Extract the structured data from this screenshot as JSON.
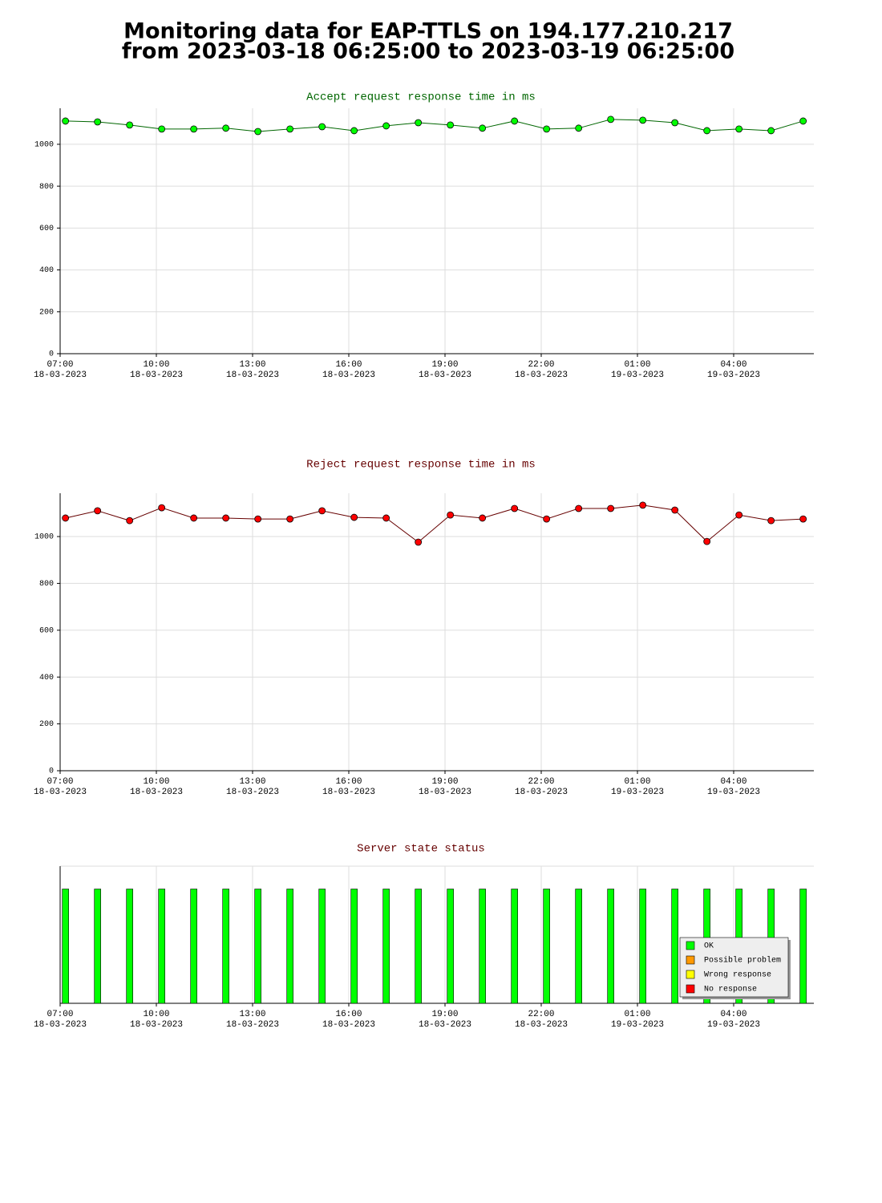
{
  "title": [
    "Monitoring data for EAP-TTLS on 194.177.210.217",
    "from 2023-03-18 06:25:00 to 2023-03-19 06:25:00"
  ],
  "chart_data": [
    {
      "type": "line",
      "title": "Accept request response time in ms",
      "title_color": "#006600",
      "color": "#006600",
      "marker_color": "#00ff00",
      "x": [
        "18-03-2023 07:10",
        "18-03-2023 08:10",
        "18-03-2023 09:10",
        "18-03-2023 10:10",
        "18-03-2023 11:10",
        "18-03-2023 12:10",
        "18-03-2023 13:10",
        "18-03-2023 14:10",
        "18-03-2023 15:10",
        "18-03-2023 16:10",
        "18-03-2023 17:10",
        "18-03-2023 18:10",
        "18-03-2023 19:10",
        "18-03-2023 20:10",
        "18-03-2023 21:10",
        "18-03-2023 22:10",
        "18-03-2023 23:10",
        "19-03-2023 00:10",
        "19-03-2023 01:10",
        "19-03-2023 02:10",
        "19-03-2023 03:10",
        "19-03-2023 04:10",
        "19-03-2023 05:10",
        "19-03-2023 06:10"
      ],
      "values": [
        1111,
        1107,
        1092,
        1073,
        1073,
        1077,
        1061,
        1073,
        1084,
        1065,
        1088,
        1103,
        1092,
        1077,
        1111,
        1073,
        1077,
        1119,
        1115,
        1103,
        1065,
        1073,
        1065,
        1111
      ],
      "xlim": [
        "18-03-2023 07:00",
        "19-03-2023 06:30"
      ],
      "xticks": [
        {
          "value": "18-03-2023 07:00",
          "label": [
            "07:00",
            "18-03-2023"
          ]
        },
        {
          "value": "18-03-2023 10:00",
          "label": [
            "10:00",
            "18-03-2023"
          ]
        },
        {
          "value": "18-03-2023 13:00",
          "label": [
            "13:00",
            "18-03-2023"
          ]
        },
        {
          "value": "18-03-2023 16:00",
          "label": [
            "16:00",
            "18-03-2023"
          ]
        },
        {
          "value": "18-03-2023 19:00",
          "label": [
            "19:00",
            "18-03-2023"
          ]
        },
        {
          "value": "18-03-2023 22:00",
          "label": [
            "22:00",
            "18-03-2023"
          ]
        },
        {
          "value": "19-03-2023 01:00",
          "label": [
            "01:00",
            "19-03-2023"
          ]
        },
        {
          "value": "19-03-2023 04:00",
          "label": [
            "04:00",
            "19-03-2023"
          ]
        }
      ],
      "ylim": [
        0,
        1172
      ],
      "yticks": [
        0,
        200,
        400,
        600,
        800,
        1000
      ],
      "grid": true
    },
    {
      "type": "line",
      "title": "Reject request response time in ms",
      "title_color": "#660000",
      "color": "#660000",
      "marker_color": "#ff0000",
      "x": [
        "18-03-2023 07:10",
        "18-03-2023 08:10",
        "18-03-2023 09:10",
        "18-03-2023 10:10",
        "18-03-2023 11:10",
        "18-03-2023 12:10",
        "18-03-2023 13:10",
        "18-03-2023 14:10",
        "18-03-2023 15:10",
        "18-03-2023 16:10",
        "18-03-2023 17:10",
        "18-03-2023 18:10",
        "18-03-2023 19:10",
        "18-03-2023 20:10",
        "18-03-2023 21:10",
        "18-03-2023 22:10",
        "18-03-2023 23:10",
        "19-03-2023 00:10",
        "19-03-2023 01:10",
        "19-03-2023 02:10",
        "19-03-2023 03:10",
        "19-03-2023 04:10",
        "19-03-2023 05:10",
        "19-03-2023 06:10"
      ],
      "values": [
        1079,
        1110,
        1068,
        1123,
        1079,
        1079,
        1075,
        1075,
        1110,
        1082,
        1079,
        976,
        1092,
        1079,
        1120,
        1075,
        1120,
        1120,
        1134,
        1113,
        979,
        1092,
        1068,
        1075
      ],
      "xlim": [
        "18-03-2023 07:00",
        "19-03-2023 06:30"
      ],
      "xticks": [
        {
          "value": "18-03-2023 07:00",
          "label": [
            "07:00",
            "18-03-2023"
          ]
        },
        {
          "value": "18-03-2023 10:00",
          "label": [
            "10:00",
            "18-03-2023"
          ]
        },
        {
          "value": "18-03-2023 13:00",
          "label": [
            "13:00",
            "18-03-2023"
          ]
        },
        {
          "value": "18-03-2023 16:00",
          "label": [
            "16:00",
            "18-03-2023"
          ]
        },
        {
          "value": "18-03-2023 19:00",
          "label": [
            "19:00",
            "18-03-2023"
          ]
        },
        {
          "value": "18-03-2023 22:00",
          "label": [
            "22:00",
            "18-03-2023"
          ]
        },
        {
          "value": "19-03-2023 01:00",
          "label": [
            "01:00",
            "19-03-2023"
          ]
        },
        {
          "value": "19-03-2023 04:00",
          "label": [
            "04:00",
            "19-03-2023"
          ]
        }
      ],
      "ylim": [
        0,
        1185
      ],
      "yticks": [
        0,
        200,
        400,
        600,
        800,
        1000
      ],
      "grid": true
    },
    {
      "type": "status",
      "title": "Server state status",
      "title_color": "#660000",
      "x": [
        "18-03-2023 07:10",
        "18-03-2023 08:10",
        "18-03-2023 09:10",
        "18-03-2023 10:10",
        "18-03-2023 11:10",
        "18-03-2023 12:10",
        "18-03-2023 13:10",
        "18-03-2023 14:10",
        "18-03-2023 15:10",
        "18-03-2023 16:10",
        "18-03-2023 17:10",
        "18-03-2023 18:10",
        "18-03-2023 19:10",
        "18-03-2023 20:10",
        "18-03-2023 21:10",
        "18-03-2023 22:10",
        "18-03-2023 23:10",
        "19-03-2023 00:10",
        "19-03-2023 01:10",
        "19-03-2023 02:10",
        "19-03-2023 03:10",
        "19-03-2023 04:10",
        "19-03-2023 05:10",
        "19-03-2023 06:10"
      ],
      "values": [
        "OK",
        "OK",
        "OK",
        "OK",
        "OK",
        "OK",
        "OK",
        "OK",
        "OK",
        "OK",
        "OK",
        "OK",
        "OK",
        "OK",
        "OK",
        "OK",
        "OK",
        "OK",
        "OK",
        "OK",
        "OK",
        "OK",
        "OK",
        "OK"
      ],
      "states": [
        {
          "name": "OK",
          "color": "#00ff00"
        },
        {
          "name": "Possible problem",
          "color": "#ff9900"
        },
        {
          "name": "Wrong response",
          "color": "#ffff00"
        },
        {
          "name": "No response",
          "color": "#ff0000"
        }
      ],
      "xlim": [
        "18-03-2023 07:00",
        "19-03-2023 06:30"
      ],
      "xticks": [
        {
          "value": "18-03-2023 07:00",
          "label": [
            "07:00",
            "18-03-2023"
          ]
        },
        {
          "value": "18-03-2023 10:00",
          "label": [
            "10:00",
            "18-03-2023"
          ]
        },
        {
          "value": "18-03-2023 13:00",
          "label": [
            "13:00",
            "18-03-2023"
          ]
        },
        {
          "value": "18-03-2023 16:00",
          "label": [
            "16:00",
            "18-03-2023"
          ]
        },
        {
          "value": "18-03-2023 19:00",
          "label": [
            "19:00",
            "18-03-2023"
          ]
        },
        {
          "value": "18-03-2023 22:00",
          "label": [
            "22:00",
            "18-03-2023"
          ]
        },
        {
          "value": "19-03-2023 01:00",
          "label": [
            "01:00",
            "19-03-2023"
          ]
        },
        {
          "value": "19-03-2023 04:00",
          "label": [
            "04:00",
            "19-03-2023"
          ]
        }
      ],
      "legend": "lower right",
      "grid": true
    }
  ]
}
